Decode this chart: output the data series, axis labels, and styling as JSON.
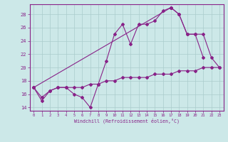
{
  "bg_color": "#cce8e8",
  "line_color": "#882288",
  "grid_color": "#aacccc",
  "xlim": [
    -0.5,
    23.5
  ],
  "ylim": [
    13.5,
    29.5
  ],
  "xticks": [
    0,
    1,
    2,
    3,
    4,
    5,
    6,
    7,
    8,
    9,
    10,
    11,
    12,
    13,
    14,
    15,
    16,
    17,
    18,
    19,
    20,
    21,
    22,
    23
  ],
  "yticks": [
    14,
    16,
    18,
    20,
    22,
    24,
    26,
    28
  ],
  "xlabel": "Windchill (Refroidissement éolien,°C)",
  "line1_x": [
    0,
    1,
    2,
    3,
    4,
    5,
    6,
    7,
    8,
    9,
    10,
    11,
    12,
    13,
    14,
    15,
    16,
    17,
    18,
    19,
    20,
    21
  ],
  "line1_y": [
    17.0,
    15.0,
    16.5,
    17.0,
    17.0,
    16.0,
    15.5,
    14.0,
    17.5,
    21.0,
    25.0,
    26.5,
    23.5,
    26.5,
    26.5,
    27.0,
    28.5,
    29.0,
    28.0,
    25.0,
    25.0,
    21.5
  ],
  "line2_x": [
    0,
    17
  ],
  "line2_y": [
    17.0,
    29.0
  ],
  "line3_x": [
    17,
    18,
    19,
    20,
    21,
    22,
    23
  ],
  "line3_y": [
    29.0,
    28.0,
    25.0,
    25.0,
    25.0,
    21.5,
    20.0
  ],
  "line4_x": [
    0,
    1,
    2,
    3,
    4,
    5,
    6,
    7,
    8,
    9,
    10,
    11,
    12,
    13,
    14,
    15,
    16,
    17,
    18,
    19,
    20,
    21,
    22,
    23
  ],
  "line4_y": [
    17.0,
    15.5,
    16.5,
    17.0,
    17.0,
    17.0,
    17.0,
    17.5,
    17.5,
    18.0,
    18.0,
    18.5,
    18.5,
    18.5,
    18.5,
    19.0,
    19.0,
    19.0,
    19.5,
    19.5,
    19.5,
    20.0,
    20.0,
    20.0
  ]
}
